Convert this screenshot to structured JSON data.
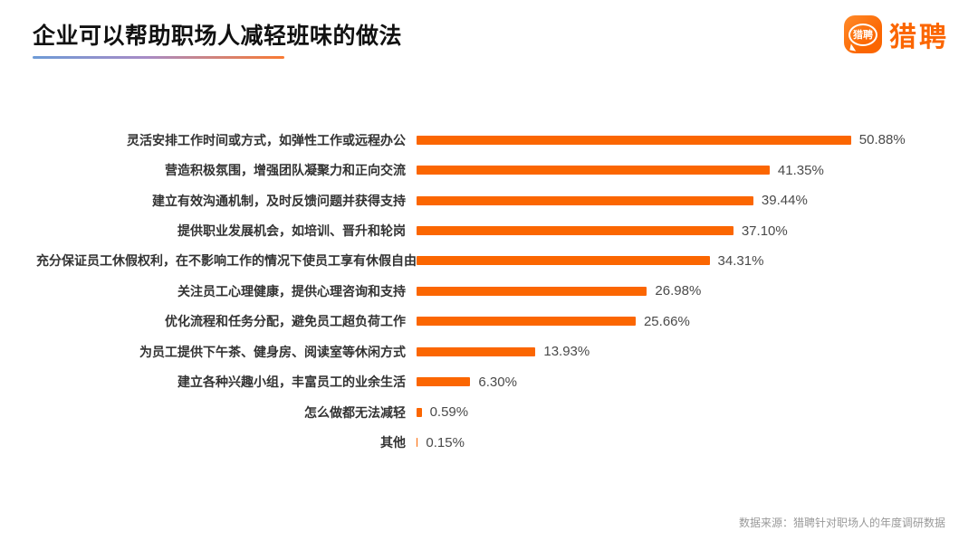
{
  "header": {
    "title": "企业可以帮助职场人减轻班味的做法",
    "logo": {
      "brand": "猎聘",
      "badge_text": "猎聘",
      "brand_color": "#FB6601"
    }
  },
  "chart_data": {
    "type": "bar",
    "orientation": "horizontal",
    "title": "企业可以帮助职场人减轻班味的做法",
    "categories": [
      "灵活安排工作时间或方式，如弹性工作或远程办公",
      "营造积极氛围，增强团队凝聚力和正向交流",
      "建立有效沟通机制，及时反馈问题并获得支持",
      "提供职业发展机会，如培训、晋升和轮岗",
      "充分保证员工休假权利，在不影响工作的情况下使员工享有休假自由",
      "关注员工心理健康，提供心理咨询和支持",
      "优化流程和任务分配，避免员工超负荷工作",
      "为员工提供下午茶、健身房、阅读室等休闲方式",
      "建立各种兴趣小组，丰富员工的业余生活",
      "怎么做都无法减轻",
      "其他"
    ],
    "values": [
      50.88,
      41.35,
      39.44,
      37.1,
      34.31,
      26.98,
      25.66,
      13.93,
      6.3,
      0.59,
      0.15
    ],
    "value_labels": [
      "50.88%",
      "41.35%",
      "39.44%",
      "37.10%",
      "34.31%",
      "26.98%",
      "25.66%",
      "13.93%",
      "6.30%",
      "0.59%",
      "0.15%"
    ],
    "bar_color": "#FB6601",
    "xlim": [
      0,
      55
    ],
    "grid": false,
    "legend": false,
    "data_labels_position": "right-of-bar"
  },
  "footer": {
    "source": "数据来源：猎聘针对职场人的年度调研数据"
  }
}
